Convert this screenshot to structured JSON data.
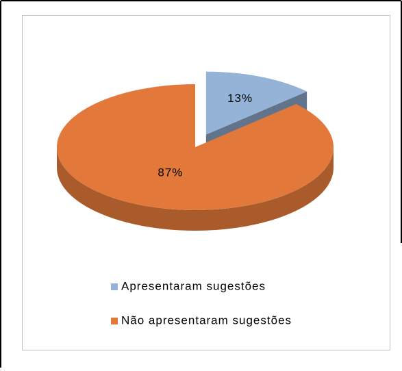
{
  "chart_data": {
    "type": "pie",
    "categories": [
      "Apresentaram sugestões",
      "Não apresentaram sugestões"
    ],
    "values": [
      13,
      87
    ],
    "value_labels": [
      "13%",
      "87%"
    ],
    "colors": [
      "#95b3d7",
      "#e2793b"
    ],
    "legend": "bottom"
  }
}
